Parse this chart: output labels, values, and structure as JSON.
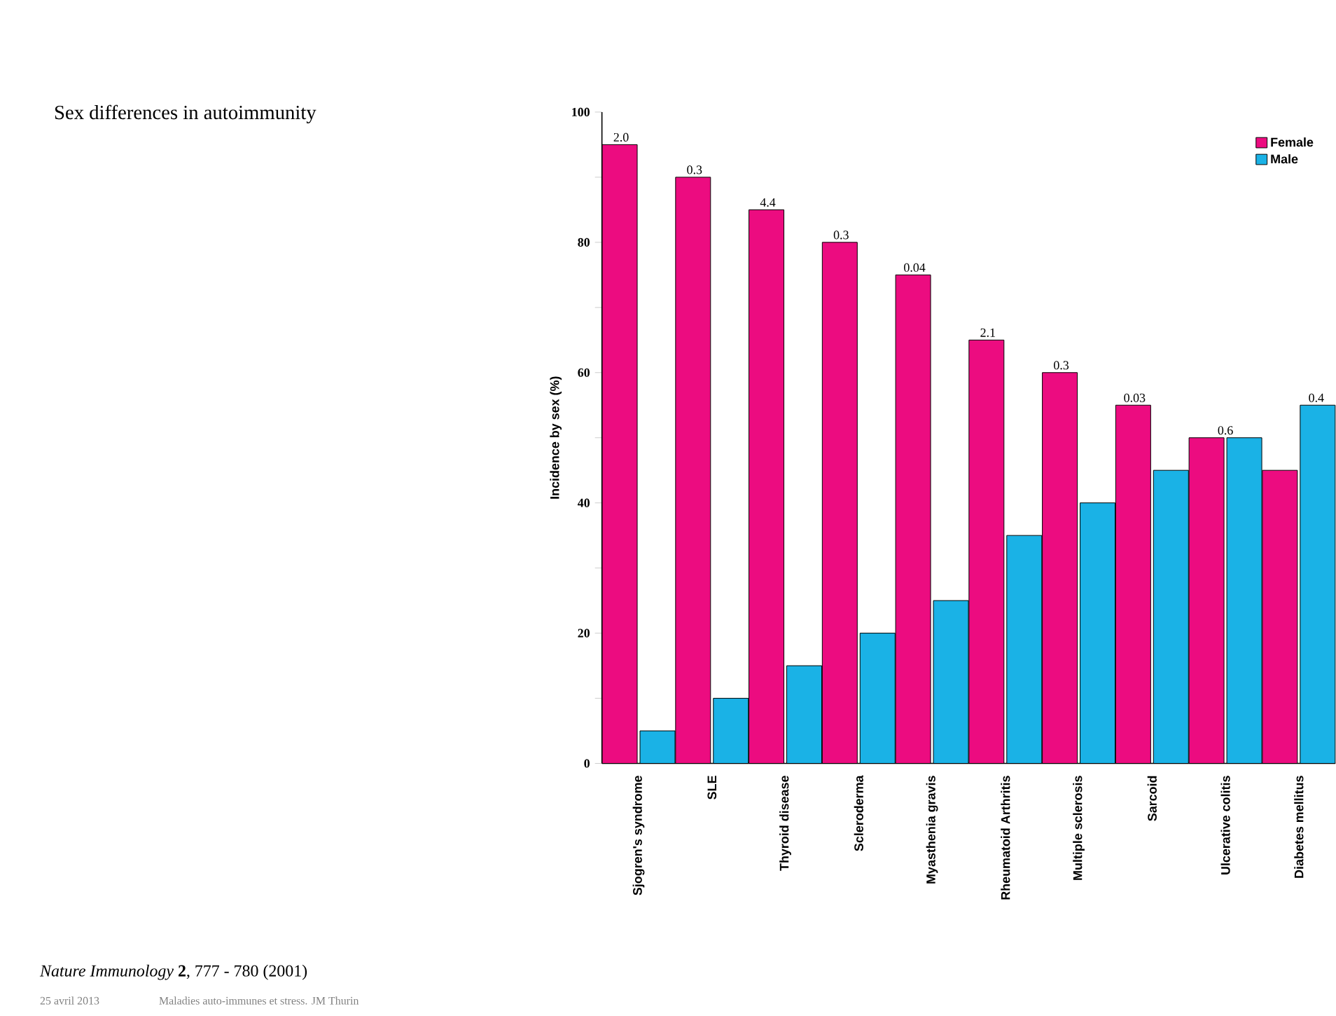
{
  "chart_data": {
    "type": "bar",
    "title": "Sex differences in autoimmunity",
    "ylabel": "Incidence by sex (%)",
    "categories": [
      "Sjogren's syndrome",
      "SLE",
      "Thyroid disease",
      "Scleroderma",
      "Myasthenia gravis",
      "Rheumatoid Arthritis",
      "Multiple sclerosis",
      "Sarcoid",
      "Ulcerative colitis",
      "Diabetes mellitus"
    ],
    "series": [
      {
        "name": "Female",
        "color": "#ec0c80",
        "values": [
          95,
          90,
          85,
          80,
          75,
          65,
          60,
          55,
          50,
          45
        ]
      },
      {
        "name": "Male",
        "color": "#1ab2e6",
        "values": [
          5,
          10,
          15,
          20,
          25,
          35,
          40,
          45,
          50,
          55
        ]
      }
    ],
    "ylim": [
      0,
      100
    ],
    "yticks": [
      0,
      {
        "value": 10,
        "label": null
      },
      20,
      {
        "value": 30,
        "label": null
      },
      40,
      {
        "value": 50,
        "label": null
      },
      60,
      {
        "value": 70,
        "label": null
      },
      80,
      {
        "value": 90,
        "label": null
      },
      100
    ],
    "legend": "top right",
    "grid": false,
    "annotations": [
      "*Nature Immunology* **2**, 777 - 780 (2001)",
      "25 avril 2013",
      "Maladies auto-immunes et stress. JM Thurin",
      {
        "text": "2.0",
        "x": "Sjogren's syndrome",
        "y": 95
      },
      {
        "text": "0.3",
        "x": "SLE",
        "y": 90
      },
      {
        "text": "4.4",
        "x": "Thyroid disease",
        "y": 85
      },
      {
        "text": "0.3",
        "x": "Scleroderma",
        "y": 80
      },
      {
        "text": "0.04",
        "x": "Myasthenia gravis",
        "y": 75
      },
      {
        "text": "2.1",
        "x": "Rheumatoid Arthritis",
        "y": 65
      },
      {
        "text": "0.3",
        "x": "Multiple sclerosis",
        "y": 60
      },
      {
        "text": "0.03",
        "x": "Sarcoid",
        "y": 55
      },
      {
        "text": "0.6",
        "x": "Ulcerative colitis",
        "y": 50
      },
      {
        "text": "0.4",
        "x": "Diabetes mellitus",
        "y": 55
      }
    ]
  }
}
